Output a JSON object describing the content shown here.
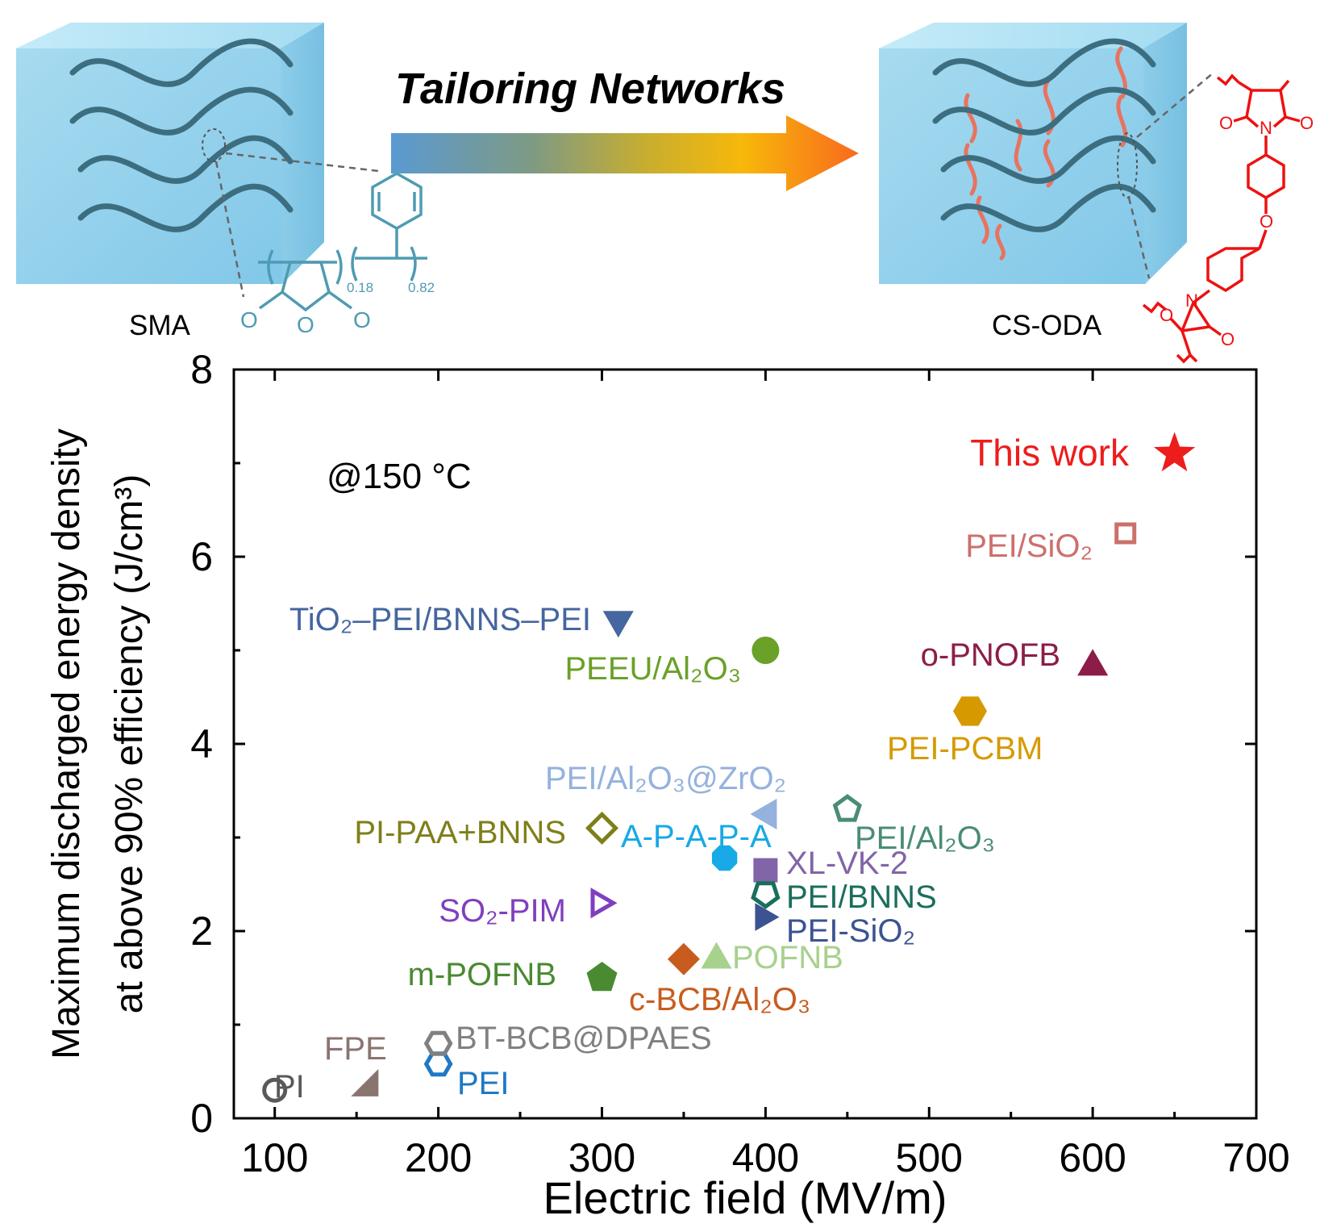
{
  "header": {
    "arrow_label": "Tailoring Networks",
    "left_material": "SMA",
    "right_material": "CS-ODA",
    "sma_structure": {
      "subscript_a": "0.18",
      "subscript_b": "0.82",
      "atom_o": "O"
    },
    "oda_structure": {
      "atom_o": "O",
      "atom_n": "N"
    }
  },
  "chart_data": {
    "type": "scatter",
    "annotation": "@150 °C",
    "xlabel": "Electric  field (MV/m)",
    "ylabel_line1": "Maximum discharged energy density",
    "ylabel_line2": "at above 90% efficiency (J/cm³)",
    "xlim": [
      75,
      700
    ],
    "ylim": [
      0,
      8
    ],
    "xticks": [
      100,
      200,
      300,
      400,
      500,
      600,
      700
    ],
    "yticks": [
      0,
      2,
      4,
      6,
      8
    ],
    "grid": false,
    "points": [
      {
        "name": "PI",
        "x": 100,
        "y": 0.3,
        "marker": "circle-open",
        "color": "#595959"
      },
      {
        "name": "FPE",
        "x": 155,
        "y": 0.38,
        "marker": "tri-corner",
        "color": "#8a7470"
      },
      {
        "name": "PEI",
        "x": 200,
        "y": 0.58,
        "marker": "hexagon-open",
        "color": "#1f78c4"
      },
      {
        "name": "BT-BCB@DPAES",
        "x": 200,
        "y": 0.8,
        "marker": "hexagon-open",
        "color": "#808080"
      },
      {
        "name": "m-POFNB",
        "x": 300,
        "y": 1.5,
        "marker": "pentagon",
        "color": "#4a8a32"
      },
      {
        "name": "SO₂-PIM",
        "x": 300,
        "y": 2.3,
        "marker": "tri-right-open",
        "color": "#7f3fbf"
      },
      {
        "name": "PI-PAA+BNNS",
        "x": 300,
        "y": 3.1,
        "marker": "diamond-open",
        "color": "#7f7f1a"
      },
      {
        "name": "TiO₂–PEI/BNNS–PEI",
        "x": 310,
        "y": 5.3,
        "marker": "tri-down",
        "color": "#45669e"
      },
      {
        "name": "c-BCB/Al₂O₃",
        "x": 350,
        "y": 1.7,
        "marker": "diamond",
        "color": "#c85c1e"
      },
      {
        "name": "POFNB",
        "x": 370,
        "y": 1.72,
        "marker": "tri-up",
        "color": "#a8d18d"
      },
      {
        "name": "A-P-A-P-A",
        "x": 375,
        "y": 2.78,
        "marker": "octagon",
        "color": "#18a9e6"
      },
      {
        "name": "PEI/Al₂O₃@ZrO₂",
        "x": 400,
        "y": 3.25,
        "marker": "tri-left",
        "color": "#94b2dd"
      },
      {
        "name": "XL-VK-2",
        "x": 400,
        "y": 2.65,
        "marker": "square",
        "color": "#8264a8"
      },
      {
        "name": "PEI/BNNS",
        "x": 400,
        "y": 2.4,
        "marker": "pentagon-open-inv",
        "color": "#1a6e5c"
      },
      {
        "name": "PEI-SiO₂",
        "x": 400,
        "y": 2.15,
        "marker": "tri-right",
        "color": "#3b5390"
      },
      {
        "name": "PEEU/Al₂O₃",
        "x": 400,
        "y": 5.0,
        "marker": "circle",
        "color": "#6aa128"
      },
      {
        "name": "PEI/Al₂O₃",
        "x": 450,
        "y": 3.3,
        "marker": "pentagon-open",
        "color": "#4a8c74"
      },
      {
        "name": "PEI-PCBM",
        "x": 525,
        "y": 4.35,
        "marker": "hexagon",
        "color": "#d69a00"
      },
      {
        "name": "o-PNOFB",
        "x": 600,
        "y": 4.85,
        "marker": "tri-up",
        "color": "#8c1d49"
      },
      {
        "name": "PEI/SiO₂",
        "x": 620,
        "y": 6.25,
        "marker": "square-open",
        "color": "#cc706c"
      },
      {
        "name": "This work",
        "x": 650,
        "y": 7.1,
        "marker": "star",
        "color": "#ee1c1c"
      }
    ]
  }
}
